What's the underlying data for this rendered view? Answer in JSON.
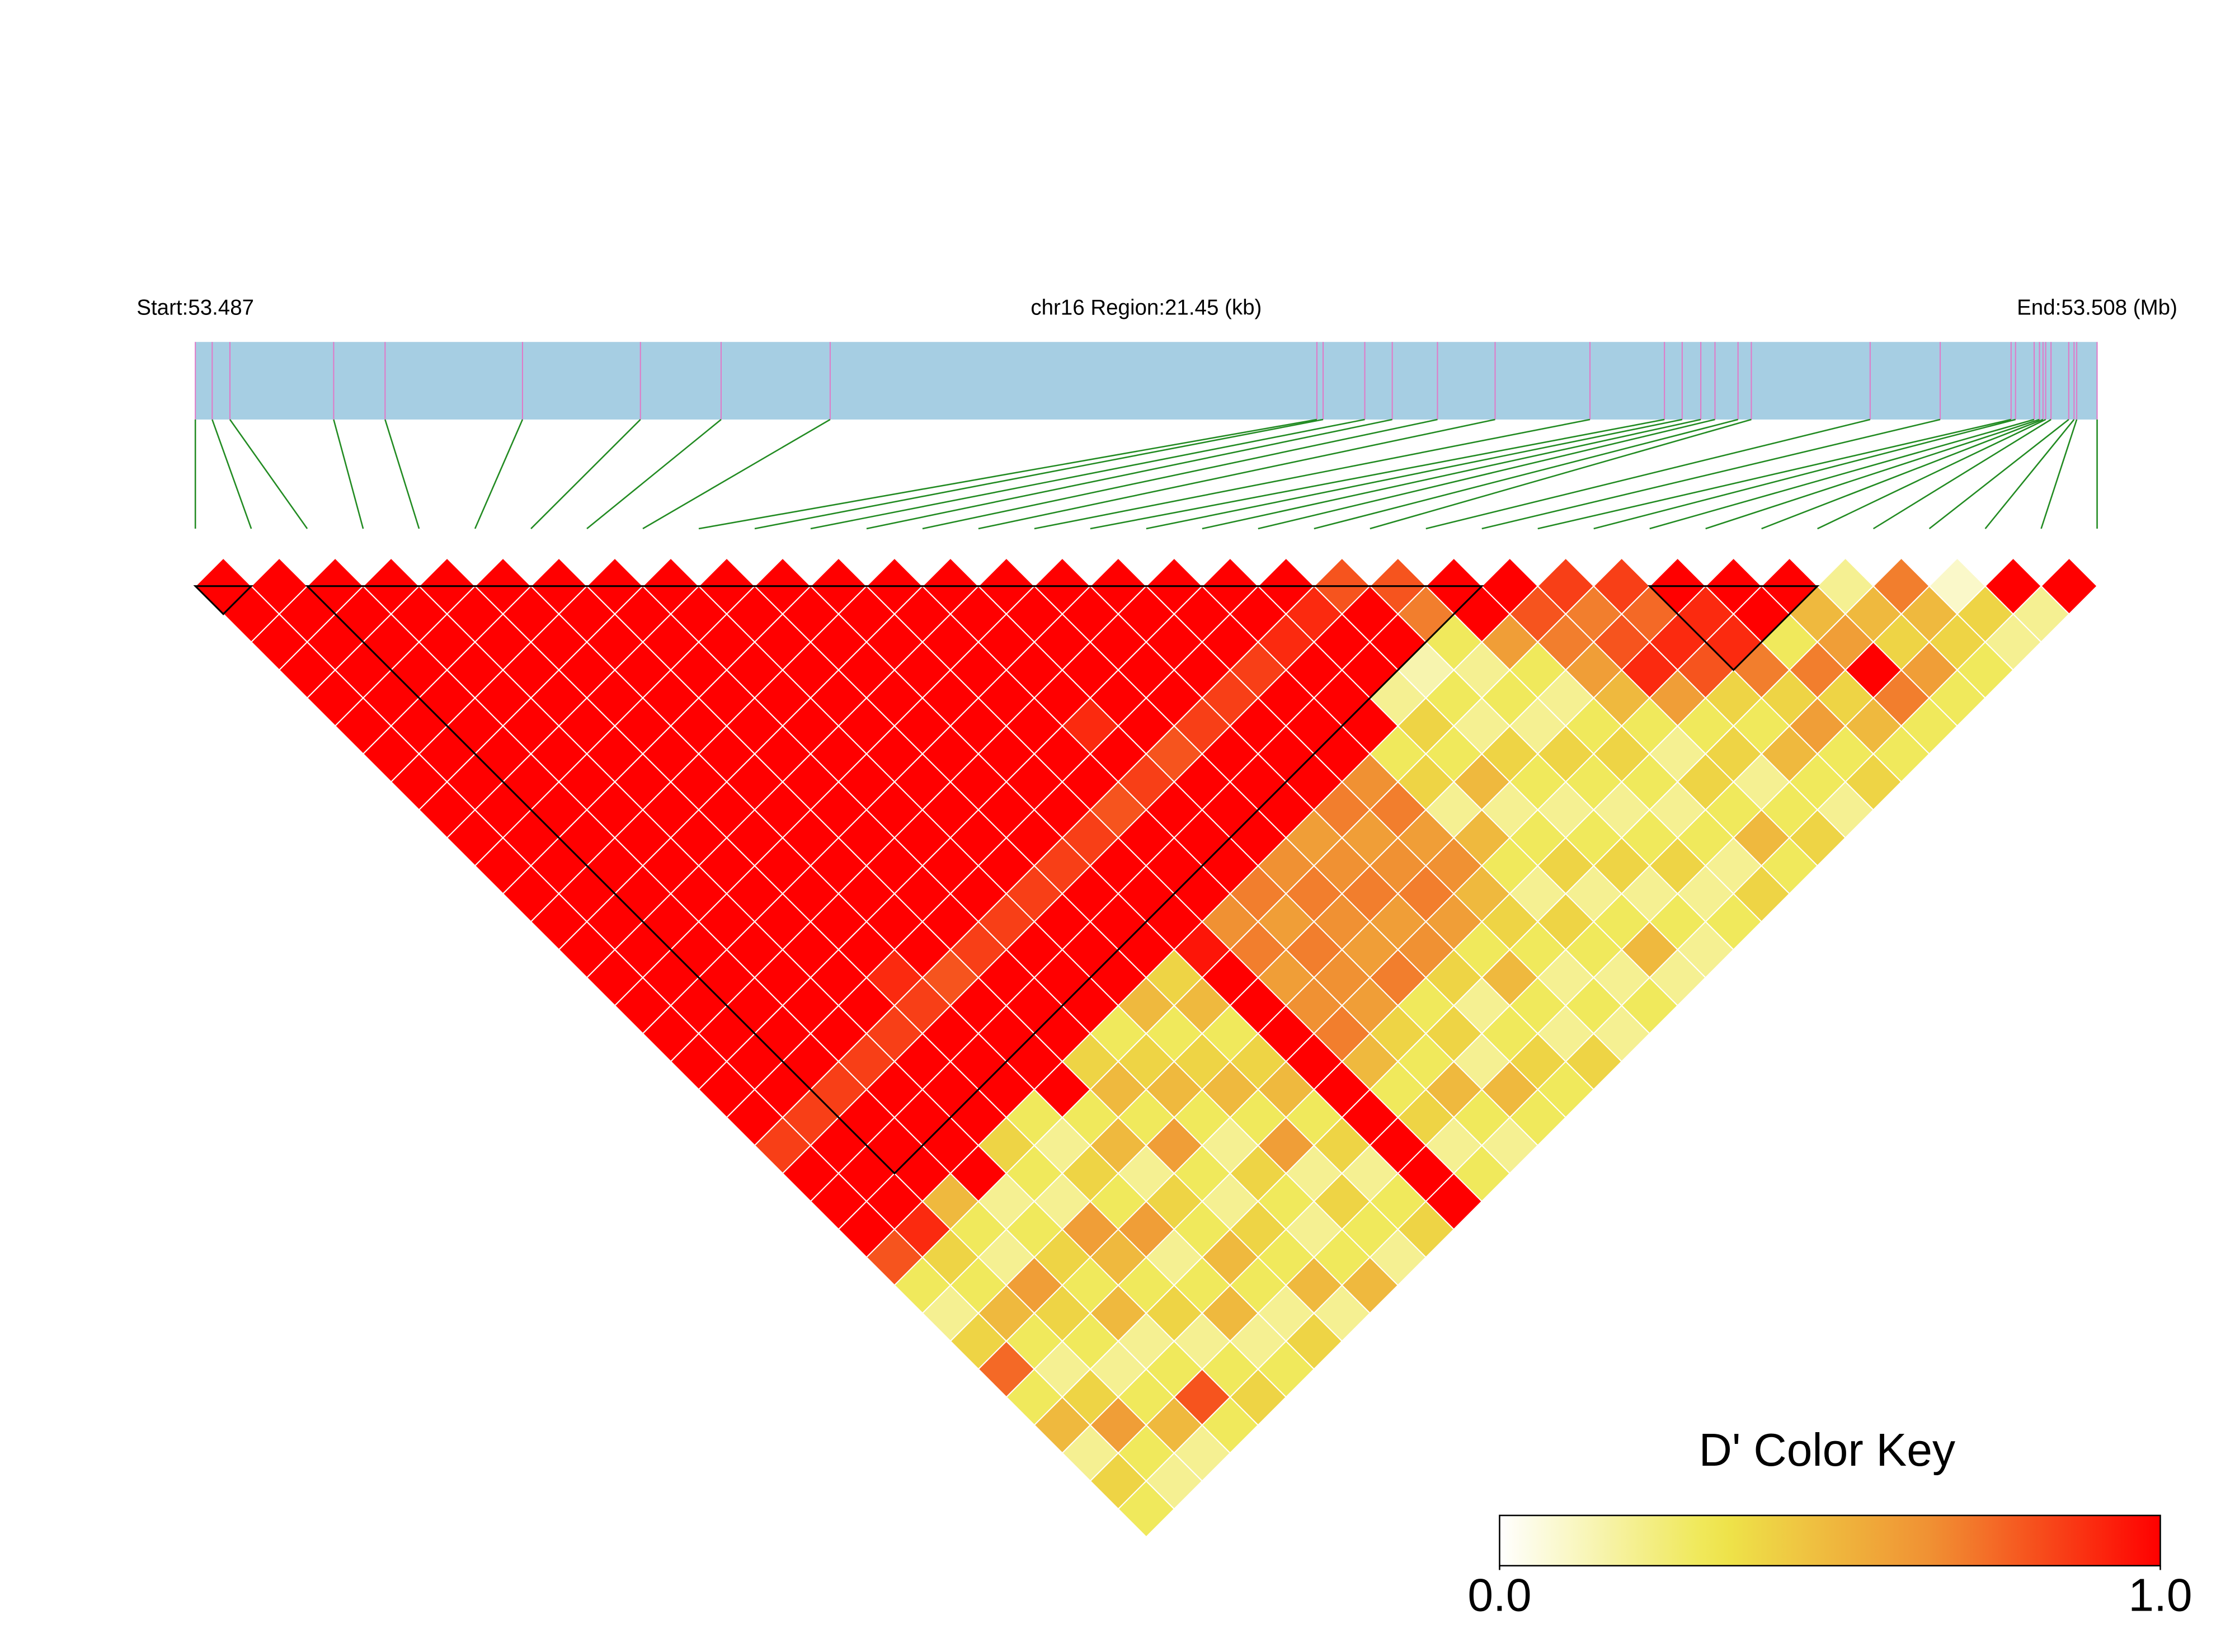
{
  "chart_data": {
    "type": "ld-heatmap",
    "title_left": "Start:53.487",
    "title_center": "chr16 Region:21.45 (kb)",
    "title_right": "End:53.508 (Mb)",
    "xlim": [
      0,
      21.45
    ],
    "positions": [
      0,
      0.19,
      0.39,
      1.56,
      2.14,
      3.69,
      5.02,
      5.93,
      7.16,
      12.65,
      12.72,
      13.19,
      13.5,
      14.01,
      14.66,
      15.73,
      16.57,
      16.77,
      16.98,
      17.14,
      17.4,
      17.55,
      18.89,
      19.68,
      20.48,
      20.53,
      20.74,
      20.8,
      20.84,
      20.87,
      20.93,
      21.13,
      21.19,
      21.22,
      21.45
    ],
    "bar_color": "#a6cee3",
    "tick_color": "#e07ac8",
    "connector_color": "#228b22",
    "dprime": [
      [
        1,
        1,
        1,
        1,
        1,
        1,
        1,
        1,
        1,
        1,
        1,
        1,
        1,
        1,
        1,
        1,
        1,
        1,
        1,
        1,
        0.85,
        1,
        1,
        1,
        0.8,
        0.3,
        0.2,
        0.4,
        0.75,
        0.3,
        0.5,
        0.2,
        0.4,
        0.3
      ],
      [
        1,
        1,
        1,
        1,
        1,
        1,
        1,
        1,
        1,
        1,
        1,
        1,
        1,
        1,
        1,
        1,
        1,
        1,
        1,
        0.85,
        1,
        1,
        1,
        0.9,
        0.4,
        0.3,
        0.5,
        0.3,
        0.2,
        0.4,
        0.6,
        0.3,
        0.2
      ],
      [
        1,
        1,
        1,
        1,
        1,
        1,
        1,
        1,
        1,
        1,
        1,
        1,
        1,
        1,
        1,
        1,
        1,
        1,
        0.85,
        1,
        1,
        1,
        0.5,
        0.3,
        0.2,
        0.6,
        0.4,
        0.3,
        0.2,
        0.3,
        0.5,
        0.2
      ],
      [
        1,
        1,
        1,
        1,
        1,
        1,
        1,
        1,
        1,
        1,
        1,
        1,
        1,
        1,
        1,
        1,
        1,
        0.85,
        1,
        1,
        1,
        1,
        0.2,
        0.3,
        0.4,
        0.3,
        0.5,
        0.2,
        0.3,
        0.8,
        0.3
      ],
      [
        1,
        1,
        1,
        1,
        1,
        1,
        1,
        1,
        1,
        1,
        1,
        1,
        1,
        1,
        1,
        1,
        0.85,
        1,
        1,
        1,
        0.4,
        0.3,
        0.2,
        0.6,
        0.5,
        0.3,
        0.4,
        0.2,
        0.3,
        0.4
      ],
      [
        1,
        1,
        1,
        1,
        1,
        1,
        1,
        1,
        1,
        1,
        1,
        1,
        1,
        1,
        0.9,
        0.85,
        1,
        1,
        1,
        0.3,
        0.2,
        0.4,
        0.3,
        0.6,
        0.2,
        0.3,
        0.5,
        0.2,
        0.3
      ],
      [
        1,
        1,
        1,
        1,
        1,
        1,
        1,
        1,
        1,
        1,
        1,
        1,
        1,
        1,
        0.8,
        1,
        1,
        1,
        1,
        0.3,
        0.5,
        0.2,
        0.4,
        0.3,
        0.5,
        0.3,
        0.2,
        0.4
      ],
      [
        1,
        1,
        1,
        1,
        1,
        1,
        1,
        1,
        1,
        1,
        1,
        1,
        1,
        0.85,
        1,
        1,
        1,
        0.4,
        0.5,
        0.3,
        0.6,
        0.3,
        0.2,
        0.4,
        0.3,
        0.5,
        0.2
      ],
      [
        1,
        1,
        1,
        1,
        1,
        1,
        1,
        1,
        1,
        1,
        1,
        1,
        0.85,
        1,
        1,
        1,
        0.3,
        0.4,
        0.5,
        0.3,
        0.2,
        0.4,
        0.3,
        0.2,
        0.3,
        0.5
      ],
      [
        1,
        1,
        1,
        1,
        1,
        1,
        1,
        1,
        1,
        1,
        1,
        0.85,
        1,
        1,
        1,
        0.5,
        0.3,
        0.4,
        0.5,
        0.3,
        0.6,
        0.2,
        0.4,
        0.3,
        0.2
      ],
      [
        1,
        1,
        1,
        1,
        1,
        1,
        1,
        1,
        1,
        1,
        0.85,
        1,
        1,
        1,
        0.4,
        0.5,
        0.3,
        0.4,
        0.5,
        0.3,
        0.4,
        0.2,
        0.3,
        0.4
      ],
      [
        1,
        1,
        1,
        1,
        1,
        1,
        1,
        1,
        1,
        0.85,
        1,
        1,
        1,
        0.95,
        1,
        1,
        1,
        1,
        1,
        1,
        1,
        1,
        1
      ],
      [
        1,
        1,
        1,
        1,
        1,
        1,
        1,
        1,
        0.8,
        1,
        1,
        1,
        0.65,
        0.7,
        0.6,
        0.65,
        0.7,
        0.5,
        0.3,
        0.4,
        0.2,
        0.3
      ],
      [
        1,
        1,
        1,
        1,
        1,
        0.9,
        1,
        0.85,
        1,
        1,
        1,
        0.7,
        0.6,
        0.7,
        0.65,
        0.6,
        0.4,
        0.3,
        0.5,
        0.3,
        0.2
      ],
      [
        1,
        1,
        1,
        1,
        1,
        1,
        0.8,
        1,
        1,
        1,
        0.65,
        0.7,
        0.65,
        0.6,
        0.7,
        0.3,
        0.4,
        0.2,
        0.5,
        0.3
      ],
      [
        1,
        1,
        1,
        1,
        1,
        0.85,
        1,
        1,
        1,
        0.6,
        0.65,
        0.7,
        0.6,
        0.65,
        0.4,
        0.2,
        0.3,
        0.4,
        0.3
      ],
      [
        1,
        1,
        1,
        1,
        0.85,
        1,
        1,
        1,
        0.7,
        0.6,
        0.65,
        0.7,
        0.6,
        0.3,
        0.5,
        0.3,
        0.2,
        0.4
      ],
      [
        1,
        1,
        1,
        0.85,
        1,
        1,
        1,
        0.65,
        0.7,
        0.6,
        0.65,
        0.5,
        0.4,
        0.3,
        0.2,
        0.3,
        0.2
      ],
      [
        1,
        1,
        0.9,
        1,
        1,
        1,
        0.3,
        0.4,
        0.2,
        0.5,
        0.3,
        0.2,
        0.4,
        0.3,
        0.2,
        0.3
      ],
      [
        1,
        0.9,
        1,
        1,
        0.2,
        0.4,
        0.3,
        0.5,
        0.2,
        0.3,
        0.4,
        0.2,
        0.3,
        0.5,
        0.2
      ],
      [
        0.8,
        1,
        1,
        0.15,
        0.3,
        0.2,
        0.4,
        0.3,
        0.2,
        0.3,
        0.4,
        0.2,
        0.3,
        0.2
      ],
      [
        0.8,
        0.7,
        0.3,
        0.2,
        0.3,
        0.2,
        0.4,
        0.3,
        0.2,
        0.3,
        0.4,
        0.2,
        0.3
      ],
      [
        1,
        1,
        0.6,
        0.3,
        0.2,
        0.3,
        0.4,
        0.3,
        0.2,
        0.3,
        0.2,
        0.4
      ],
      [
        1,
        0.8,
        0.7,
        0.6,
        0.5,
        0.3,
        0.2,
        0.4,
        0.3,
        0.5,
        0.3
      ],
      [
        0.85,
        0.7,
        0.8,
        0.9,
        0.6,
        0.3,
        0.4,
        0.2,
        0.3,
        0.4
      ],
      [
        0.85,
        0.75,
        0.9,
        0.8,
        0.4,
        0.3,
        0.5,
        0.3,
        0.2
      ],
      [
        1,
        0.9,
        0.9,
        0.7,
        0.4,
        0.6,
        0.3,
        0.4
      ],
      [
        1,
        1,
        0.3,
        0.7,
        0.4,
        0.5,
        0.3
      ],
      [
        1,
        0.5,
        0.6,
        1,
        0.7,
        0.3
      ],
      [
        0.2,
        0.5,
        0.4,
        0.6,
        0.3
      ],
      [
        0.7,
        0.5,
        0.4,
        0.3
      ],
      [
        0.1,
        0.4,
        0.2
      ],
      [
        1,
        0.2
      ],
      [
        1
      ]
    ],
    "blocks": [
      [
        0,
        1
      ],
      [
        2,
        23
      ],
      [
        26,
        29
      ]
    ],
    "colorbar": {
      "title": "D' Color Key",
      "clim": [
        0,
        1
      ],
      "ticks": [
        {
          "value": 0,
          "label": "0.0"
        },
        {
          "value": 1,
          "label": "1.0"
        }
      ],
      "colors": [
        "#ffffff",
        "#eee64a",
        "#f08c32",
        "#ff0000"
      ]
    }
  }
}
